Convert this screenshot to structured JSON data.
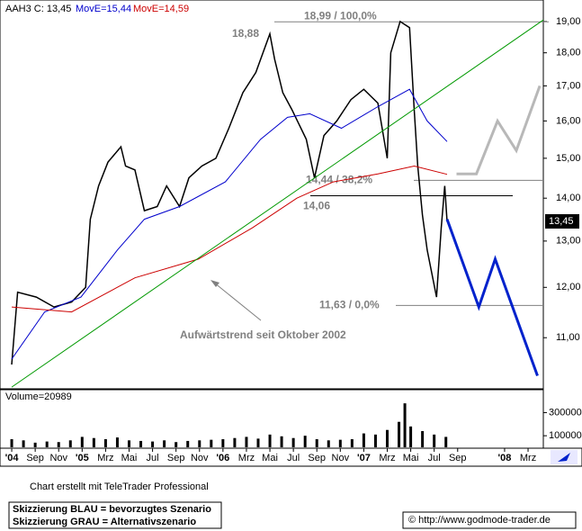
{
  "chart_data": [
    {
      "type": "line",
      "header": "AAH3 C: 13,45",
      "log_scale": true,
      "xlim": [
        -1,
        45.3
      ],
      "ylim": [
        10.07,
        19.72
      ],
      "xticks": [
        {
          "value": 0,
          "label": "'04"
        },
        {
          "value": 2,
          "label": "Sep"
        },
        {
          "value": 4,
          "label": "Nov"
        },
        {
          "value": 6,
          "label": "'05"
        },
        {
          "value": 8,
          "label": "Mrz"
        },
        {
          "value": 10,
          "label": "Mai"
        },
        {
          "value": 12,
          "label": "Jul"
        },
        {
          "value": 14,
          "label": "Sep"
        },
        {
          "value": 16,
          "label": "Nov"
        },
        {
          "value": 18,
          "label": "'06"
        },
        {
          "value": 20,
          "label": "Mrz"
        },
        {
          "value": 22,
          "label": "Mai"
        },
        {
          "value": 24,
          "label": "Jul"
        },
        {
          "value": 26,
          "label": "Sep"
        },
        {
          "value": 28,
          "label": "Nov"
        },
        {
          "value": 30,
          "label": "'07"
        },
        {
          "value": 32,
          "label": "Mrz"
        },
        {
          "value": 34,
          "label": "Mai"
        },
        {
          "value": 36,
          "label": "Jul"
        },
        {
          "value": 38,
          "label": "Sep"
        },
        {
          "value": 42,
          "label": "'08"
        },
        {
          "value": 44,
          "label": "Mrz"
        }
      ],
      "yticks": [
        {
          "value": 11,
          "label": "11,00"
        },
        {
          "value": 12,
          "label": "12,00"
        },
        {
          "value": 13,
          "label": "13,00"
        },
        {
          "value": 14,
          "label": "14,00"
        },
        {
          "value": 15,
          "label": "15,00"
        },
        {
          "value": 16,
          "label": "16,00"
        },
        {
          "value": 17,
          "label": "17,00"
        },
        {
          "value": 18,
          "label": "18,00"
        },
        {
          "value": 19,
          "label": "19,00"
        }
      ],
      "series": [
        {
          "color": "#000000",
          "width": 1.5,
          "x": [
            0,
            0.5,
            2.1,
            3.6,
            5.1,
            6.3,
            6.7,
            7.4,
            8.2,
            9.3,
            9.7,
            10.5,
            11.3,
            12.4,
            13.2,
            14.3,
            15.1,
            16.2,
            17.4,
            18.5,
            19.7,
            20.8,
            22.0,
            22.4,
            23.1,
            23.9,
            25.1,
            25.8,
            26.6,
            27.7,
            28.9,
            30.0,
            31.2,
            32.0,
            32.3,
            33.1,
            33.9,
            34.3,
            34.6,
            35.0,
            35.4,
            36.2,
            36.6,
            36.9,
            37.1
          ],
          "values": [
            10.5,
            11.9,
            11.8,
            11.6,
            11.7,
            12.0,
            13.5,
            14.3,
            14.9,
            15.3,
            14.8,
            14.7,
            13.7,
            13.8,
            14.3,
            13.8,
            14.5,
            14.8,
            15.0,
            15.8,
            16.8,
            17.4,
            18.6,
            17.8,
            16.8,
            16.3,
            15.5,
            14.5,
            15.6,
            16.0,
            16.6,
            16.9,
            16.5,
            15.0,
            18.0,
            19.0,
            18.8,
            16.3,
            14.8,
            13.6,
            12.8,
            11.8,
            13.3,
            14.3,
            13.45
          ]
        },
        {
          "name": "MovE=15,44",
          "color": "#0000cc",
          "width": 1,
          "x": [
            0,
            2.8,
            5.9,
            9.0,
            11.3,
            14.3,
            18.2,
            21.2,
            23.5,
            25.4,
            28.1,
            31.2,
            33.9,
            35.4,
            37.1
          ],
          "values": [
            10.6,
            11.5,
            11.8,
            12.8,
            13.5,
            13.8,
            14.4,
            15.5,
            16.1,
            16.2,
            15.8,
            16.4,
            16.9,
            16.0,
            15.44
          ]
        },
        {
          "name": "MovE=14,59",
          "color": "#cc0000",
          "width": 1,
          "x": [
            0,
            5.1,
            10.5,
            15.9,
            20.5,
            24.3,
            27.4,
            31.2,
            34.3,
            37.1
          ],
          "values": [
            11.6,
            11.5,
            12.2,
            12.6,
            13.3,
            14.0,
            14.4,
            14.6,
            14.8,
            14.59
          ]
        },
        {
          "color": "#009900",
          "width": 1,
          "x": [
            0,
            45.3
          ],
          "values": [
            10.1,
            19.05
          ]
        },
        {
          "color": "#0022cc",
          "width": 3,
          "x": [
            37.1,
            39.8,
            41.2,
            44.8
          ],
          "values": [
            13.5,
            11.6,
            12.6,
            10.3
          ]
        },
        {
          "color": "#b8b8b8",
          "width": 3,
          "x": [
            37.9,
            39.6,
            41.4,
            43.0,
            45.0
          ],
          "values": [
            14.6,
            14.6,
            16.0,
            15.2,
            17.0
          ]
        }
      ],
      "levels": [
        {
          "value": 18.99,
          "label": "18,99 / 100,0%",
          "color": "#808080"
        },
        {
          "value": 14.44,
          "label": "14,44 / 38,2%",
          "color": "#808080"
        },
        {
          "value": 14.06,
          "label": "14,06",
          "color": "#000000"
        },
        {
          "value": 11.63,
          "label": "11,63 / 0,0%",
          "color": "#808080"
        }
      ],
      "peak_label": {
        "value": 18.88,
        "label": "18,88"
      },
      "last_label": {
        "value": 13.45,
        "label": "13,45"
      },
      "annotation": "Aufwärtstrend seit Oktober 2002"
    },
    {
      "type": "bar",
      "label": "Volume=20989",
      "color": "#000000",
      "ylim": [
        0,
        490000
      ],
      "yticks": [
        100000,
        300000
      ],
      "x": [
        0,
        1,
        2,
        3,
        4,
        5,
        6,
        7,
        8,
        9,
        10,
        11,
        12,
        13,
        14,
        15,
        16,
        17,
        18,
        19,
        20,
        21,
        22,
        23,
        24,
        25,
        26,
        27,
        28,
        29,
        30,
        31,
        32,
        33,
        33.5,
        34,
        35,
        36,
        37
      ],
      "values": [
        70000,
        60000,
        40000,
        50000,
        45000,
        60000,
        90000,
        80000,
        70000,
        85000,
        60000,
        55000,
        50000,
        60000,
        45000,
        55000,
        60000,
        65000,
        70000,
        80000,
        90000,
        75000,
        110000,
        95000,
        80000,
        100000,
        70000,
        60000,
        65000,
        70000,
        120000,
        110000,
        150000,
        220000,
        380000,
        180000,
        140000,
        110000,
        90000
      ]
    }
  ],
  "footer": {
    "credit": "Chart erstellt mit TeleTrader Professional",
    "legend_blue": "Skizzierung BLAU = bevorzugtes Szenario",
    "legend_gray": "Skizzierung GRAU = Alternativszenario",
    "source": "© http://www.godmode-trader.de"
  }
}
